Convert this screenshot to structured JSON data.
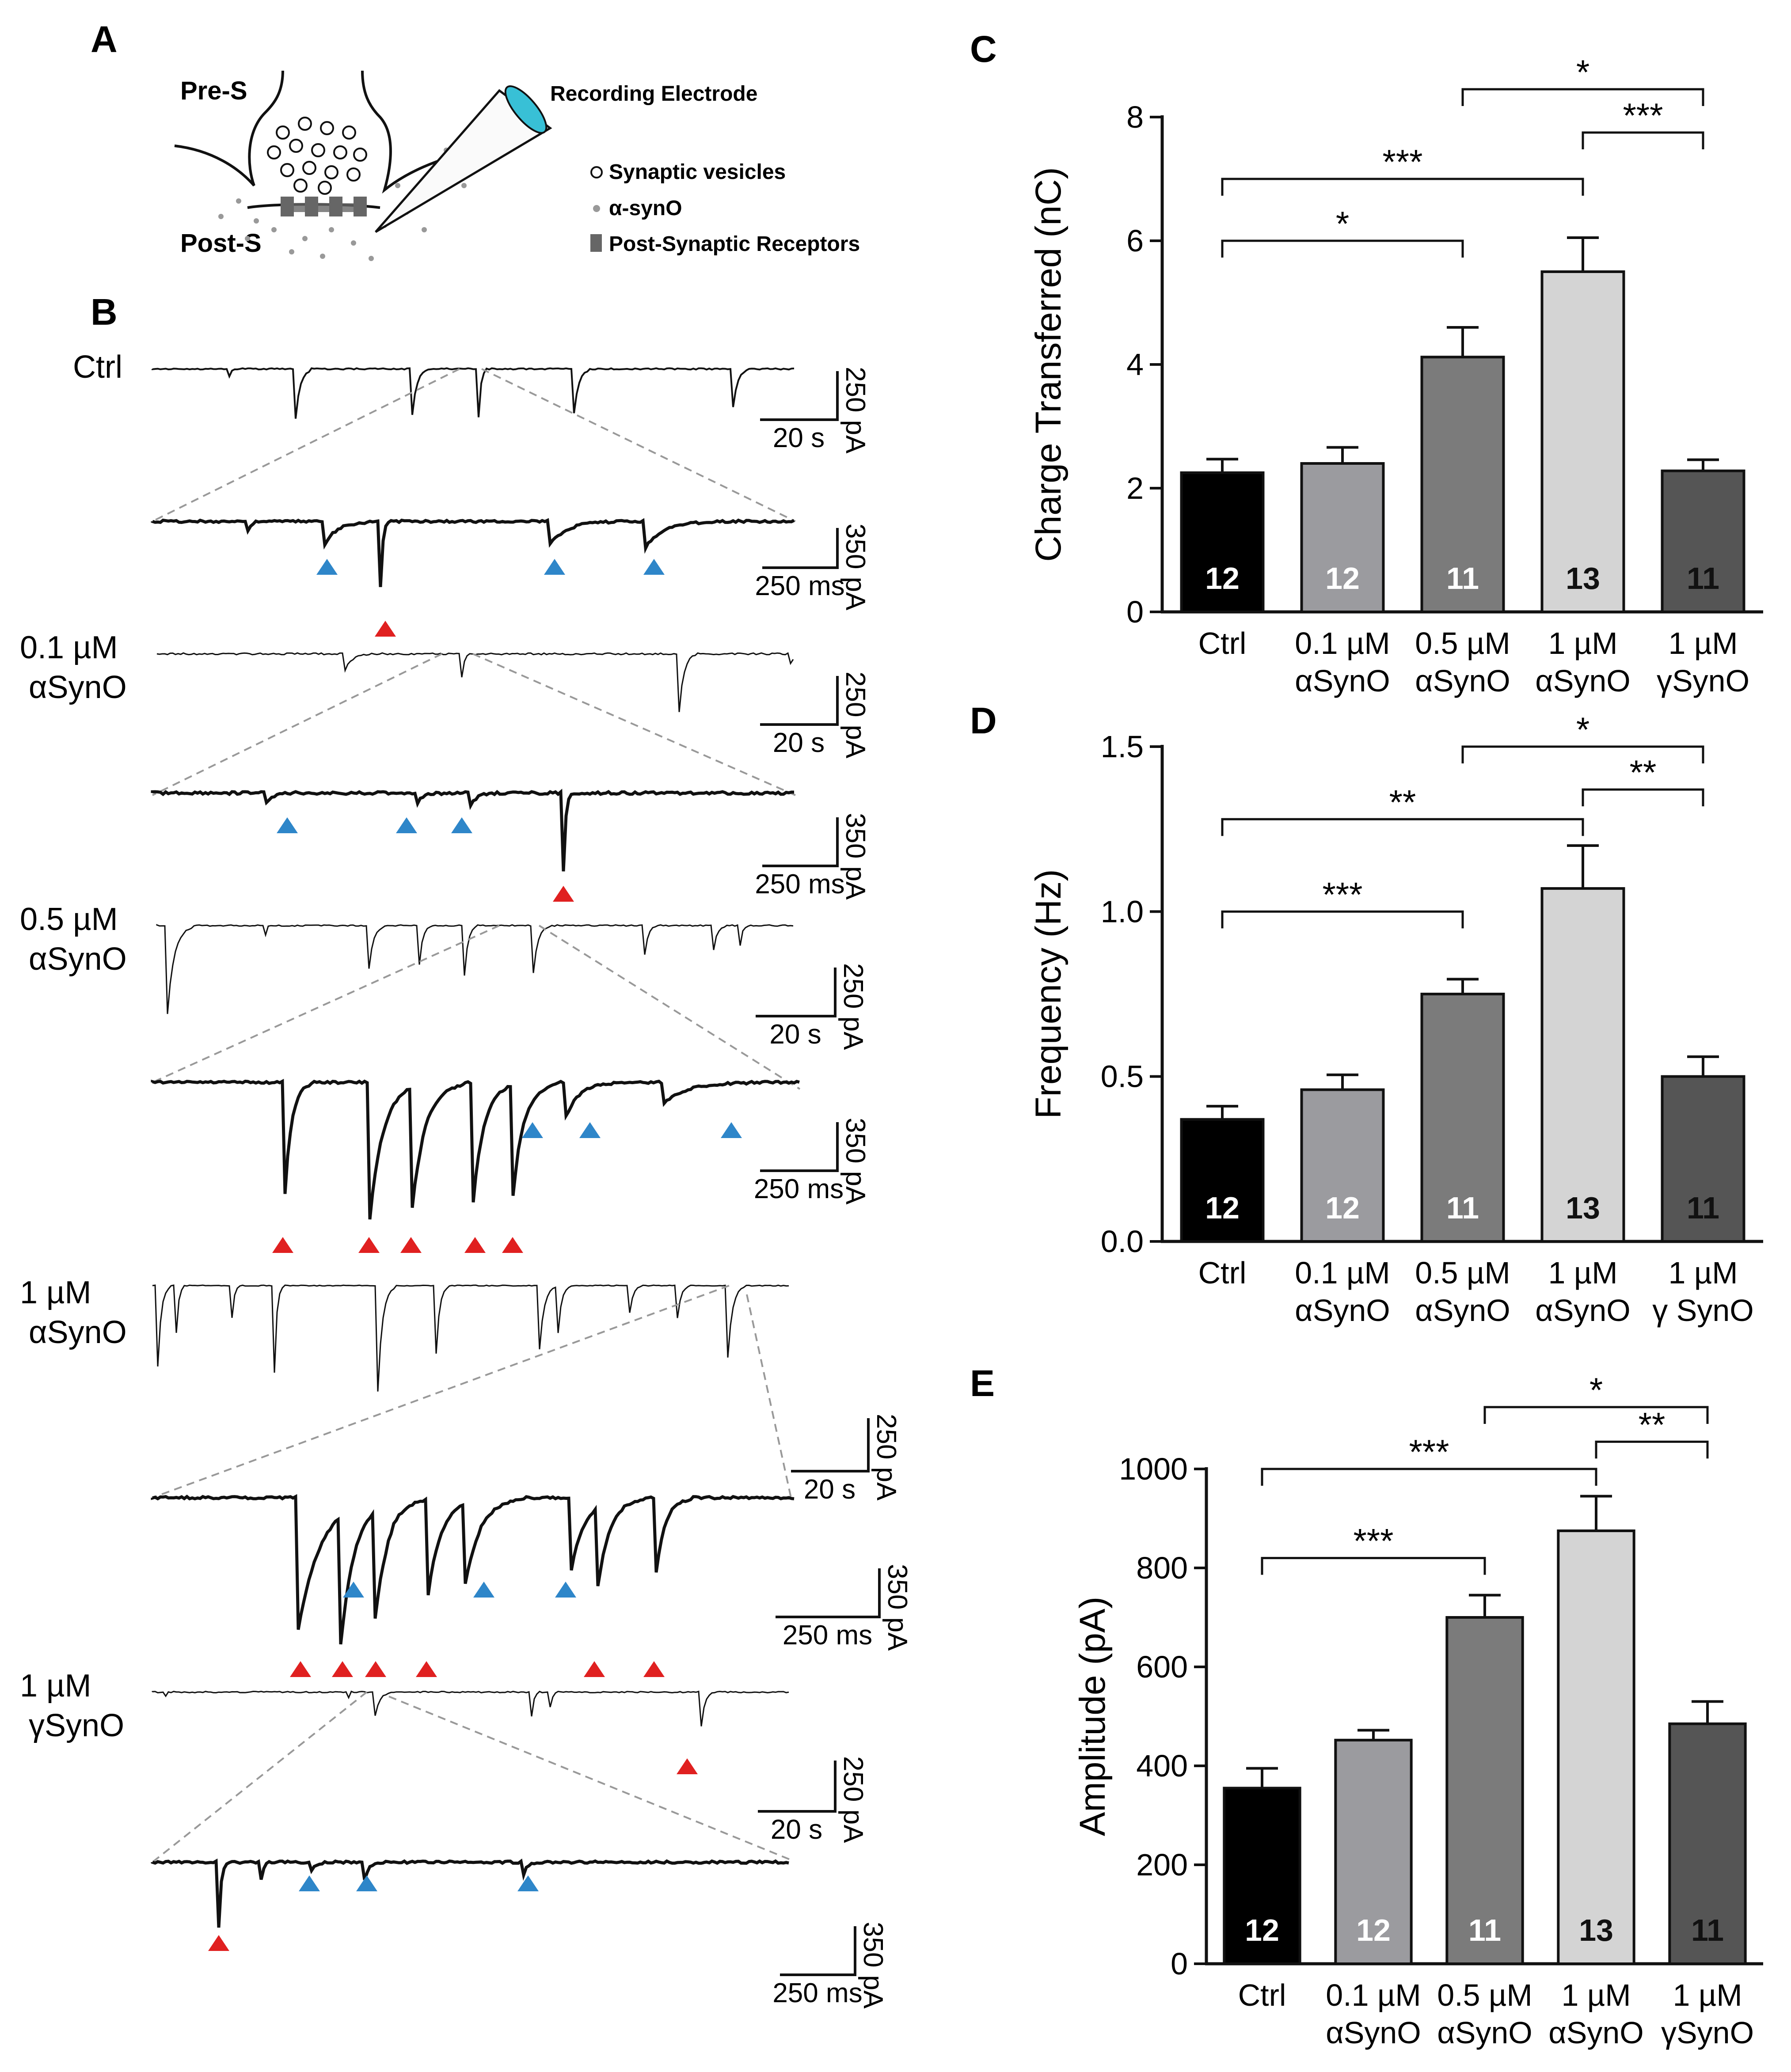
{
  "panels": {
    "A": "A",
    "B": "B",
    "C": "C",
    "D": "D",
    "E": "E"
  },
  "diagram": {
    "pre": "Pre-S",
    "post": "Post-S",
    "electrode": "Recording Electrode",
    "legend": [
      {
        "symbol": "open-circle",
        "text": "Synaptic vesicles"
      },
      {
        "symbol": "grey-dot",
        "text": "α-synO"
      },
      {
        "symbol": "grey-rect",
        "text": "Post-Synaptic Receptors"
      }
    ]
  },
  "traces": {
    "conditions": [
      {
        "line1": "Ctrl",
        "line2": ""
      },
      {
        "line1": "0.1 µM",
        "line2": "αSynO"
      },
      {
        "line1": "0.5 µM",
        "line2": "αSynO"
      },
      {
        "line1": "1 µM",
        "line2": "αSynO"
      },
      {
        "line1": "1 µM",
        "line2": "γSynO"
      }
    ],
    "scale_long": {
      "time": "20 s",
      "amp": "250 pA"
    },
    "scale_short": {
      "time": "250 ms",
      "amp": "350 pA"
    },
    "colors": {
      "blue_marker": "#2e86c9",
      "red_marker": "#e02020",
      "trace": "#111111"
    }
  },
  "chart_data": [
    {
      "type": "bar",
      "ylabel": "Charge Transferred (nC)",
      "ylim": [
        0,
        8
      ],
      "yticks": [
        "0",
        "2",
        "4",
        "6",
        "8"
      ],
      "categories": [
        [
          "Ctrl",
          ""
        ],
        [
          "0.1 µM",
          "αSynO"
        ],
        [
          "0.5 µM",
          "αSynO"
        ],
        [
          "1 µM",
          "αSynO"
        ],
        [
          "1 µM",
          "γSynO"
        ]
      ],
      "values": [
        2.25,
        2.4,
        4.12,
        5.5,
        2.28
      ],
      "errors": [
        0.22,
        0.26,
        0.48,
        0.55,
        0.18
      ],
      "n": [
        "12",
        "12",
        "11",
        "13",
        "11"
      ],
      "colors": [
        "#000000",
        "#9b9b9f",
        "#7b7b7b",
        "#d4d4d4",
        "#555555"
      ],
      "nColors": [
        "#ffffff",
        "#ffffff",
        "#ffffff",
        "#111111",
        "#111111"
      ],
      "sig": [
        {
          "from": 0,
          "to": 2,
          "label": "*",
          "level": 6.0
        },
        {
          "from": 0,
          "to": 3,
          "label": "***",
          "level": 7.0
        },
        {
          "from": 2,
          "to": 4,
          "label": "*",
          "level": 8.45
        },
        {
          "from": 3,
          "to": 4,
          "label": "***",
          "level": 7.75
        }
      ]
    },
    {
      "type": "bar",
      "ylabel": "Frequency (Hz)",
      "ylim": [
        0,
        1.5
      ],
      "yticks": [
        "0.0",
        "0.5",
        "1.0",
        "1.5"
      ],
      "categories": [
        [
          "Ctrl",
          ""
        ],
        [
          "0.1 µM",
          "αSynO"
        ],
        [
          "0.5 µM",
          "αSynO"
        ],
        [
          "1 µM",
          "αSynO"
        ],
        [
          "1 µM",
          "γ SynO"
        ]
      ],
      "values": [
        0.37,
        0.46,
        0.75,
        1.07,
        0.5
      ],
      "errors": [
        0.04,
        0.045,
        0.045,
        0.13,
        0.06
      ],
      "n": [
        "12",
        "12",
        "11",
        "13",
        "11"
      ],
      "colors": [
        "#000000",
        "#9b9b9f",
        "#7b7b7b",
        "#d4d4d4",
        "#555555"
      ],
      "nColors": [
        "#ffffff",
        "#ffffff",
        "#ffffff",
        "#111111",
        "#111111"
      ],
      "sig": [
        {
          "from": 0,
          "to": 2,
          "label": "***",
          "level": 1.0
        },
        {
          "from": 0,
          "to": 3,
          "label": "**",
          "level": 1.28
        },
        {
          "from": 2,
          "to": 4,
          "label": "*",
          "level": 1.5
        },
        {
          "from": 3,
          "to": 4,
          "label": "**",
          "level": 1.37
        }
      ]
    },
    {
      "type": "bar",
      "ylabel": "Amplitude (pA)",
      "ylim": [
        0,
        1000
      ],
      "yticks": [
        "0",
        "200",
        "400",
        "600",
        "800",
        "1000"
      ],
      "categories": [
        [
          "Ctrl",
          ""
        ],
        [
          "0.1 µM",
          "αSynO"
        ],
        [
          "0.5 µM",
          "αSynO"
        ],
        [
          "1 µM",
          "αSynO"
        ],
        [
          "1 µM",
          "γSynO"
        ]
      ],
      "values": [
        355,
        452,
        700,
        875,
        485
      ],
      "errors": [
        40,
        20,
        45,
        70,
        45
      ],
      "n": [
        "12",
        "12",
        "11",
        "13",
        "11"
      ],
      "colors": [
        "#000000",
        "#9b9b9f",
        "#7b7b7b",
        "#d4d4d4",
        "#555555"
      ],
      "nColors": [
        "#ffffff",
        "#ffffff",
        "#ffffff",
        "#111111",
        "#111111"
      ],
      "sig": [
        {
          "from": 0,
          "to": 2,
          "label": "***",
          "level": 820
        },
        {
          "from": 0,
          "to": 3,
          "label": "***",
          "level": 1000
        },
        {
          "from": 2,
          "to": 4,
          "label": "*",
          "level": 1125
        },
        {
          "from": 3,
          "to": 4,
          "label": "**",
          "level": 1055
        }
      ]
    }
  ]
}
